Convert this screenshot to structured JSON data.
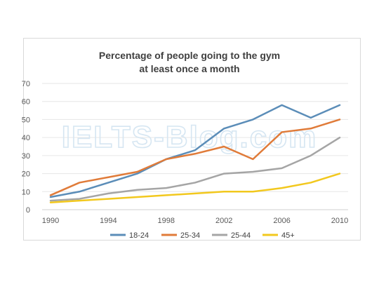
{
  "chart_data": {
    "type": "line",
    "title_lines": [
      "Percentage of people going to the gym",
      "at least once a month"
    ],
    "watermark": "IELTS-Blog.com",
    "x": [
      1990,
      1992,
      1994,
      1996,
      1998,
      2000,
      2002,
      2004,
      2006,
      2008,
      2010
    ],
    "x_tick_labels": [
      "1990",
      "1994",
      "1998",
      "2002",
      "2006",
      "2010"
    ],
    "x_tick_values": [
      1990,
      1994,
      1998,
      2002,
      2006,
      2010
    ],
    "xlim": [
      1990,
      2010
    ],
    "ylim": [
      0,
      70
    ],
    "y_ticks": [
      0,
      10,
      20,
      30,
      40,
      50,
      60,
      70
    ],
    "grid": "horizontal",
    "legend_position": "bottom",
    "series": [
      {
        "name": "18-24",
        "color": "#5b8db8",
        "values": [
          7,
          10,
          15,
          20,
          28,
          33,
          45,
          50,
          58,
          51,
          58
        ]
      },
      {
        "name": "25-34",
        "color": "#e07b39",
        "values": [
          8,
          15,
          18,
          21,
          28,
          31,
          35,
          28,
          43,
          45,
          50
        ]
      },
      {
        "name": "25-44",
        "color": "#a5a5a5",
        "values": [
          5,
          6,
          9,
          11,
          12,
          15,
          20,
          21,
          23,
          30,
          40
        ]
      },
      {
        "name": "45+",
        "color": "#f2c81e",
        "values": [
          4,
          5,
          6,
          7,
          8,
          9,
          10,
          10,
          12,
          15,
          20
        ]
      }
    ]
  }
}
